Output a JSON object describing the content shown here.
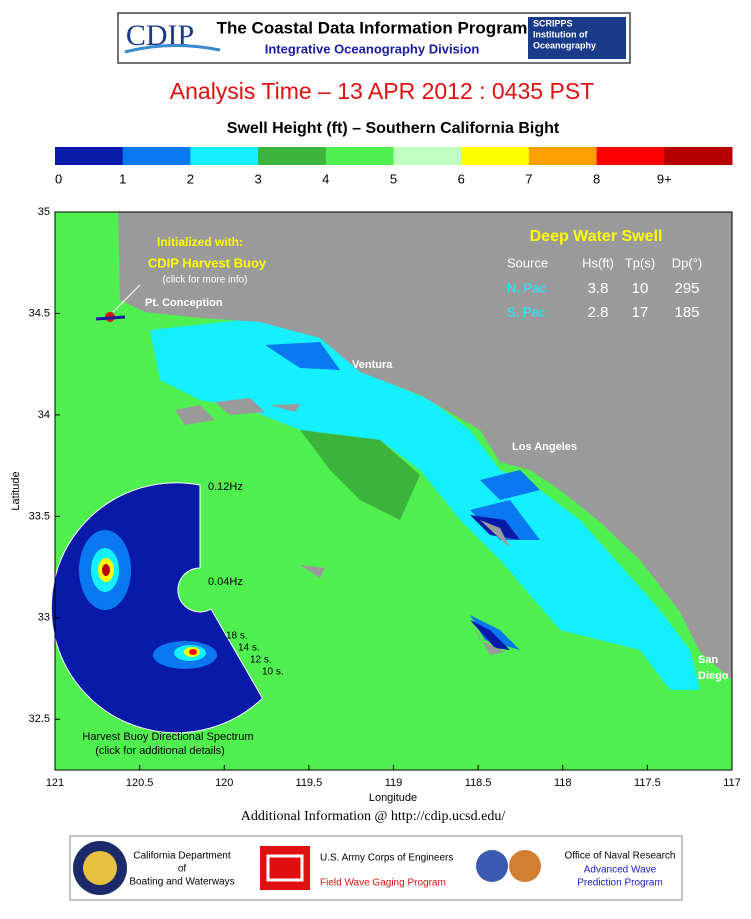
{
  "header": {
    "logo": "CDIP",
    "title": "The Coastal Data Information Program",
    "subtitle": "Integrative Oceanography Division",
    "scripps": [
      "SCRIPPS",
      "Institution of",
      "Oceanography"
    ]
  },
  "analysis_time": "Analysis Time –  13 APR 2012 : 0435 PST",
  "map_title": "Swell Height (ft) – Southern California Bight",
  "colorbar": {
    "colors": [
      "#0a1aa8",
      "#0a78f0",
      "#14f0ff",
      "#3cb43c",
      "#50ef50",
      "#bfffbf",
      "#ffff00",
      "#ffa000",
      "#ff0000",
      "#b40000"
    ],
    "labels": [
      "0",
      "1",
      "2",
      "3",
      "4",
      "5",
      "6",
      "7",
      "8",
      "9+"
    ]
  },
  "map": {
    "xlabel": "Longitude",
    "ylabel": "Latitude",
    "xlim": [
      121,
      117
    ],
    "ylim": [
      32.25,
      35
    ],
    "xticks": [
      121,
      120.5,
      120,
      119.5,
      119,
      118.5,
      118,
      117.5,
      117
    ],
    "yticks": [
      32.5,
      33,
      33.5,
      34,
      34.5,
      35
    ],
    "places": [
      "Pt. Conception",
      "Ventura",
      "Los Angeles",
      "San",
      "Diego"
    ],
    "init": [
      "Initialized with:",
      "CDIP Harvest Buoy",
      "(click for more info)"
    ],
    "swell": {
      "title": "Deep Water Swell",
      "header": [
        "Source",
        "Hs(ft)",
        "Tp(s)",
        "Dp(°)"
      ],
      "rows": [
        [
          "N. Pac",
          "3.8",
          "10",
          "295"
        ],
        [
          "S. Pac",
          "2.8",
          "17",
          "185"
        ]
      ]
    },
    "spectrum": {
      "labels": [
        "0.12Hz",
        "0.04Hz",
        "18 s.",
        "14 s.",
        "12 s.",
        "10 s."
      ],
      "caption": [
        "Harvest Buoy Directional Spectrum",
        "(click for additional details)"
      ]
    }
  },
  "footer": {
    "info": "Additional Information @ http://cdip.ucsd.edu/",
    "sponsors": [
      [
        "California Department",
        "of",
        "Boating and Waterways"
      ],
      [
        "U.S. Army Corps of Engineers",
        "Field Wave Gaging Program"
      ],
      [
        "Office of Naval Research",
        "Advanced Wave",
        "Prediction Program"
      ]
    ]
  }
}
